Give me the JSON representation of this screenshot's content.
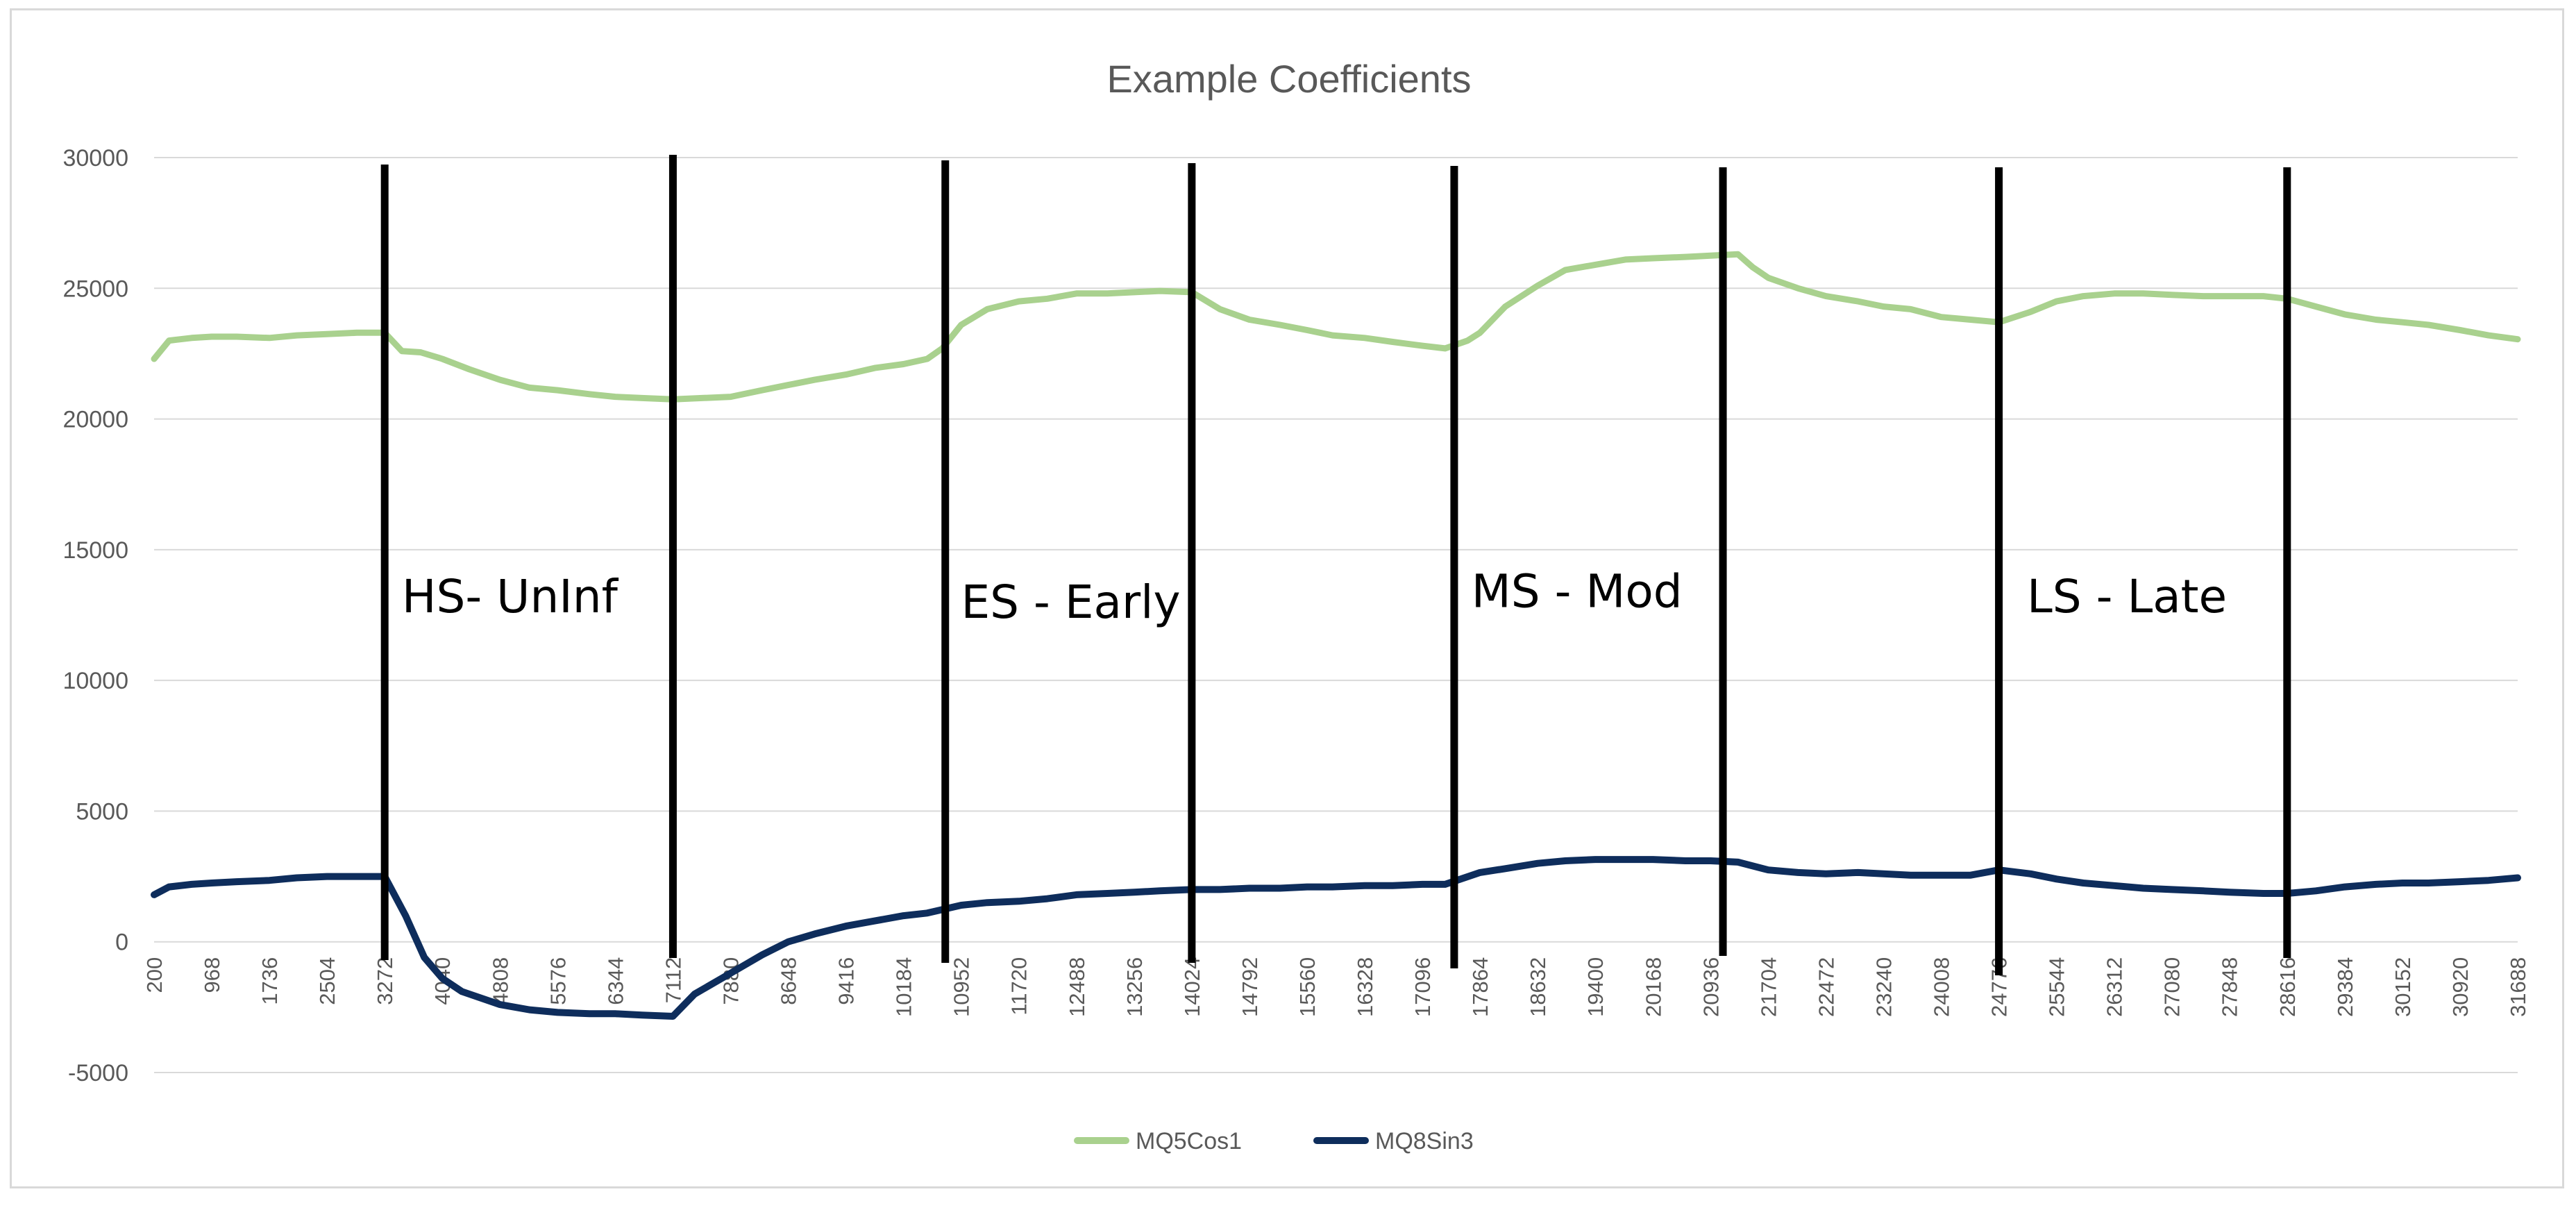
{
  "chart_data": {
    "type": "line",
    "title": "Example Coefficients",
    "xlabel": "",
    "ylabel": "",
    "ylim": [
      -5000,
      30000
    ],
    "y_ticks": [
      30000,
      25000,
      20000,
      15000,
      10000,
      5000,
      0,
      -5000
    ],
    "x_range": [
      200,
      31688
    ],
    "x_tick_labels": [
      "200",
      "968",
      "1736",
      "2504",
      "3272",
      "4040",
      "4808",
      "5576",
      "6344",
      "7112",
      "7880",
      "8648",
      "9416",
      "10184",
      "10952",
      "11720",
      "12488",
      "13256",
      "14024",
      "14792",
      "15560",
      "16328",
      "17096",
      "17864",
      "18632",
      "19400",
      "20168",
      "20936",
      "21704",
      "22472",
      "23240",
      "24008",
      "24776",
      "25544",
      "26312",
      "27080",
      "27848",
      "28616",
      "29384",
      "30152",
      "30920",
      "31688"
    ],
    "grid": true,
    "legend_position": "bottom",
    "series": [
      {
        "name": "MQ5Cos1",
        "color": "#a9d18e",
        "points": [
          [
            200,
            22300
          ],
          [
            400,
            23000
          ],
          [
            700,
            23100
          ],
          [
            968,
            23150
          ],
          [
            1300,
            23150
          ],
          [
            1736,
            23100
          ],
          [
            2100,
            23200
          ],
          [
            2504,
            23250
          ],
          [
            2900,
            23300
          ],
          [
            3272,
            23300
          ],
          [
            3500,
            22600
          ],
          [
            3750,
            22550
          ],
          [
            4040,
            22300
          ],
          [
            4400,
            21900
          ],
          [
            4808,
            21500
          ],
          [
            5200,
            21200
          ],
          [
            5576,
            21100
          ],
          [
            6000,
            20950
          ],
          [
            6344,
            20850
          ],
          [
            6700,
            20800
          ],
          [
            7112,
            20750
          ],
          [
            7500,
            20800
          ],
          [
            7880,
            20850
          ],
          [
            8300,
            21100
          ],
          [
            8648,
            21300
          ],
          [
            9000,
            21500
          ],
          [
            9416,
            21700
          ],
          [
            9800,
            21950
          ],
          [
            10184,
            22100
          ],
          [
            10500,
            22300
          ],
          [
            10700,
            22700
          ],
          [
            10952,
            23600
          ],
          [
            11300,
            24200
          ],
          [
            11720,
            24500
          ],
          [
            12100,
            24600
          ],
          [
            12488,
            24800
          ],
          [
            12900,
            24800
          ],
          [
            13256,
            24850
          ],
          [
            13600,
            24900
          ],
          [
            14024,
            24850
          ],
          [
            14400,
            24200
          ],
          [
            14792,
            23800
          ],
          [
            15200,
            23600
          ],
          [
            15560,
            23400
          ],
          [
            15900,
            23200
          ],
          [
            16328,
            23100
          ],
          [
            16700,
            22950
          ],
          [
            17096,
            22800
          ],
          [
            17400,
            22700
          ],
          [
            17700,
            23000
          ],
          [
            17864,
            23300
          ],
          [
            18200,
            24300
          ],
          [
            18632,
            25100
          ],
          [
            19000,
            25700
          ],
          [
            19400,
            25900
          ],
          [
            19800,
            26100
          ],
          [
            20168,
            26150
          ],
          [
            20600,
            26200
          ],
          [
            20936,
            26250
          ],
          [
            21300,
            26300
          ],
          [
            21500,
            25800
          ],
          [
            21704,
            25400
          ],
          [
            22100,
            25000
          ],
          [
            22472,
            24700
          ],
          [
            22900,
            24500
          ],
          [
            23240,
            24300
          ],
          [
            23600,
            24200
          ],
          [
            24008,
            23900
          ],
          [
            24400,
            23800
          ],
          [
            24776,
            23700
          ],
          [
            25200,
            24100
          ],
          [
            25544,
            24500
          ],
          [
            25900,
            24700
          ],
          [
            26312,
            24800
          ],
          [
            26700,
            24800
          ],
          [
            27080,
            24750
          ],
          [
            27500,
            24700
          ],
          [
            27848,
            24700
          ],
          [
            28300,
            24700
          ],
          [
            28616,
            24600
          ],
          [
            29000,
            24300
          ],
          [
            29384,
            24000
          ],
          [
            29800,
            23800
          ],
          [
            30152,
            23700
          ],
          [
            30500,
            23600
          ],
          [
            30920,
            23400
          ],
          [
            31300,
            23200
          ],
          [
            31688,
            23050
          ]
        ]
      },
      {
        "name": "MQ8Sin3",
        "color": "#0e2d5c",
        "points": [
          [
            200,
            1800
          ],
          [
            400,
            2100
          ],
          [
            700,
            2200
          ],
          [
            968,
            2250
          ],
          [
            1300,
            2300
          ],
          [
            1736,
            2350
          ],
          [
            2100,
            2450
          ],
          [
            2504,
            2500
          ],
          [
            2900,
            2500
          ],
          [
            3272,
            2500
          ],
          [
            3550,
            1000
          ],
          [
            3800,
            -600
          ],
          [
            4040,
            -1400
          ],
          [
            4300,
            -1900
          ],
          [
            4808,
            -2400
          ],
          [
            5200,
            -2600
          ],
          [
            5576,
            -2700
          ],
          [
            6000,
            -2750
          ],
          [
            6344,
            -2750
          ],
          [
            6700,
            -2800
          ],
          [
            7112,
            -2850
          ],
          [
            7400,
            -2000
          ],
          [
            7880,
            -1200
          ],
          [
            8300,
            -500
          ],
          [
            8648,
            0
          ],
          [
            9000,
            300
          ],
          [
            9416,
            600
          ],
          [
            9800,
            800
          ],
          [
            10184,
            1000
          ],
          [
            10500,
            1100
          ],
          [
            10952,
            1400
          ],
          [
            11300,
            1500
          ],
          [
            11720,
            1550
          ],
          [
            12100,
            1650
          ],
          [
            12488,
            1800
          ],
          [
            12900,
            1850
          ],
          [
            13256,
            1900
          ],
          [
            13600,
            1950
          ],
          [
            14024,
            2000
          ],
          [
            14400,
            2000
          ],
          [
            14792,
            2050
          ],
          [
            15200,
            2050
          ],
          [
            15560,
            2100
          ],
          [
            15900,
            2100
          ],
          [
            16328,
            2150
          ],
          [
            16700,
            2150
          ],
          [
            17096,
            2200
          ],
          [
            17400,
            2200
          ],
          [
            17864,
            2650
          ],
          [
            18200,
            2800
          ],
          [
            18632,
            3000
          ],
          [
            19000,
            3100
          ],
          [
            19400,
            3150
          ],
          [
            19800,
            3150
          ],
          [
            20168,
            3150
          ],
          [
            20600,
            3100
          ],
          [
            20936,
            3100
          ],
          [
            21300,
            3050
          ],
          [
            21704,
            2750
          ],
          [
            22100,
            2650
          ],
          [
            22472,
            2600
          ],
          [
            22900,
            2650
          ],
          [
            23240,
            2600
          ],
          [
            23600,
            2550
          ],
          [
            24008,
            2550
          ],
          [
            24400,
            2550
          ],
          [
            24776,
            2750
          ],
          [
            25200,
            2600
          ],
          [
            25544,
            2400
          ],
          [
            25900,
            2250
          ],
          [
            26312,
            2150
          ],
          [
            26700,
            2050
          ],
          [
            27080,
            2000
          ],
          [
            27500,
            1950
          ],
          [
            27848,
            1900
          ],
          [
            28300,
            1850
          ],
          [
            28616,
            1850
          ],
          [
            29000,
            1950
          ],
          [
            29384,
            2100
          ],
          [
            29800,
            2200
          ],
          [
            30152,
            2250
          ],
          [
            30500,
            2250
          ],
          [
            30920,
            2300
          ],
          [
            31300,
            2350
          ],
          [
            31688,
            2450
          ]
        ]
      }
    ],
    "region_lines_x": [
      3272,
      7112,
      10740,
      14024,
      17520,
      21100,
      24776,
      28616
    ],
    "annotations": [
      {
        "text": "HS- UnInf",
        "x": 3500,
        "y": 12600
      },
      {
        "text": "ES - Early",
        "x": 10950,
        "y": 12400
      },
      {
        "text": "MS - Mod",
        "x": 17750,
        "y": 12800
      },
      {
        "text": "LS - Late",
        "x": 25150,
        "y": 12600
      }
    ]
  }
}
